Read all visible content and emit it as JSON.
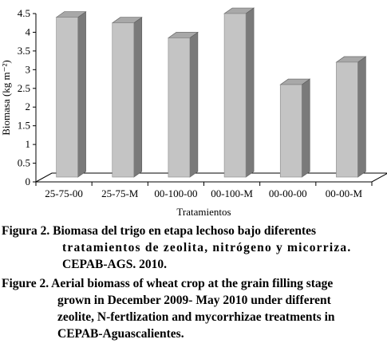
{
  "chart_data": {
    "type": "bar",
    "style": "3d",
    "categories": [
      "25-75-00",
      "25-75-M",
      "00-100-00",
      "00-100-M",
      "00-00-00",
      "00-00-M"
    ],
    "values": [
      4.4,
      4.25,
      3.85,
      4.5,
      2.6,
      3.2
    ],
    "xlabel": "Tratamientos",
    "ylabel": "Biomasa (kg m⁻²)",
    "ylim": [
      0,
      4.5
    ],
    "yticks": [
      "0",
      "0.5",
      "1",
      "1.5",
      "2",
      "2.5",
      "3",
      "3.5",
      "4",
      "4.5"
    ],
    "grid": false,
    "legend": "none",
    "colors": {
      "bar_front": "#c4c4c4",
      "bar_side": "#7a7a7a",
      "bar_top": "#a8a8a8"
    }
  },
  "caption": {
    "es_lines": [
      "Figura 2. Biomasa del trigo en etapa lechoso bajo diferentes",
      "tratamientos de zeolita, nitrógeno y micorriza.",
      "CEPAB-AGS. 2010."
    ],
    "en_lines": [
      "Figure 2. Aerial biomass of wheat crop at the grain filling stage",
      "grown in December 2009- May 2010 under different",
      "zeolite, N-fertlization and mycorrhizae treatments in",
      "CEPAB-Aguascalientes."
    ]
  }
}
